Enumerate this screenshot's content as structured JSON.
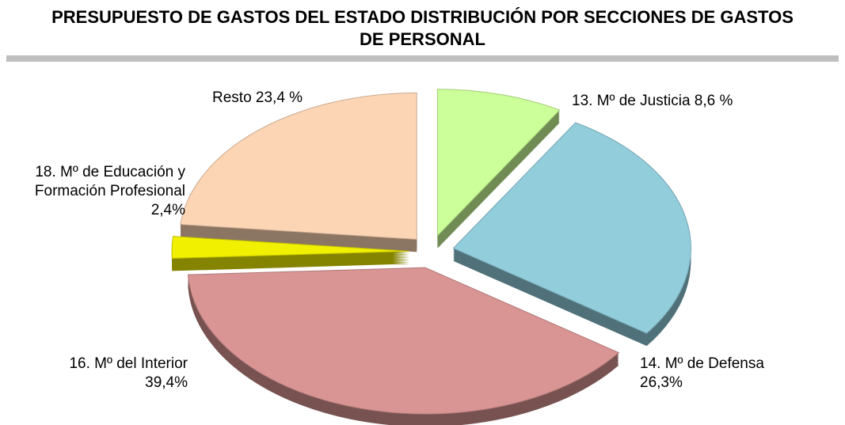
{
  "chart_data": {
    "type": "pie",
    "title": "PRESUPUESTO DE GASTOS DEL ESTADO DISTRIBUCIÓN POR SECCIONES DE GASTOS DE PERSONAL",
    "categories": [
      "13. Mº de Justicia",
      "14. Mº de Defensa",
      "16. Mº del Interior",
      "18. Mº de Educación y Formación Profesional",
      "Resto"
    ],
    "values": [
      8.6,
      26.3,
      39.4,
      2.4,
      23.4
    ],
    "value_labels": [
      "8,6 %",
      "26,3%",
      "39,4%",
      "2,4%",
      "23,4 %"
    ],
    "colors": [
      "#ccff99",
      "#92cddc",
      "#d99594",
      "#f0f000",
      "#fcd5b4"
    ]
  }
}
